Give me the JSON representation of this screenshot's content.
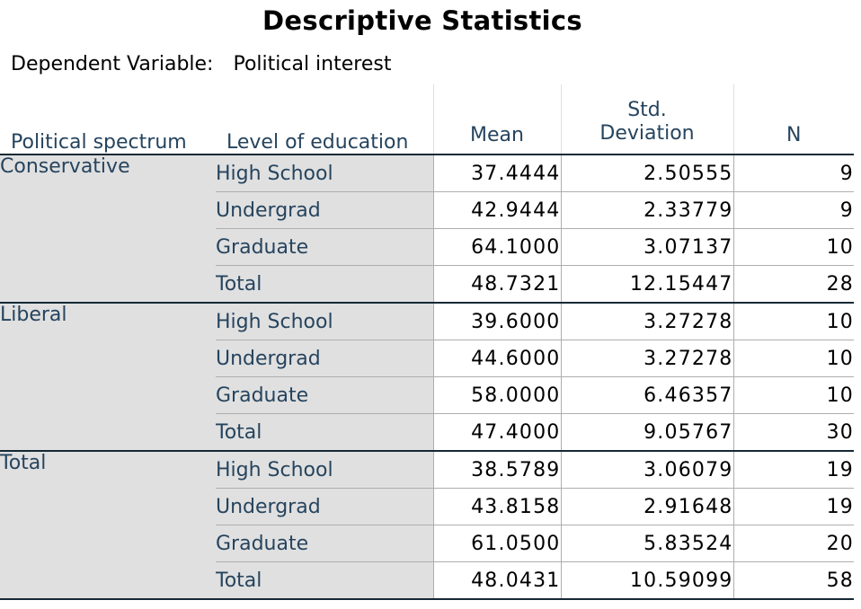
{
  "title": "Descriptive Statistics",
  "dependent_variable_label": "Dependent Variable:",
  "dependent_variable_value": "Political interest",
  "headers": {
    "spectrum": "Political spectrum",
    "education": "Level of education",
    "mean": "Mean",
    "sd_line1": "Std.",
    "sd_line2": "Deviation",
    "n": "N"
  },
  "groups": [
    {
      "spectrum": "Conservative",
      "rows": [
        {
          "education": "High School",
          "mean": "37.4444",
          "sd": "2.50555",
          "n": "9"
        },
        {
          "education": "Undergrad",
          "mean": "42.9444",
          "sd": "2.33779",
          "n": "9"
        },
        {
          "education": "Graduate",
          "mean": "64.1000",
          "sd": "3.07137",
          "n": "10"
        },
        {
          "education": "Total",
          "mean": "48.7321",
          "sd": "12.15447",
          "n": "28"
        }
      ]
    },
    {
      "spectrum": "Liberal",
      "rows": [
        {
          "education": "High School",
          "mean": "39.6000",
          "sd": "3.27278",
          "n": "10"
        },
        {
          "education": "Undergrad",
          "mean": "44.6000",
          "sd": "3.27278",
          "n": "10"
        },
        {
          "education": "Graduate",
          "mean": "58.0000",
          "sd": "6.46357",
          "n": "10"
        },
        {
          "education": "Total",
          "mean": "47.4000",
          "sd": "9.05767",
          "n": "30"
        }
      ]
    },
    {
      "spectrum": "Total",
      "rows": [
        {
          "education": "High School",
          "mean": "38.5789",
          "sd": "3.06079",
          "n": "19"
        },
        {
          "education": "Undergrad",
          "mean": "43.8158",
          "sd": "2.91648",
          "n": "19"
        },
        {
          "education": "Graduate",
          "mean": "61.0500",
          "sd": "5.83524",
          "n": "20"
        },
        {
          "education": "Total",
          "mean": "48.0431",
          "sd": "10.59099",
          "n": "58"
        }
      ]
    }
  ]
}
